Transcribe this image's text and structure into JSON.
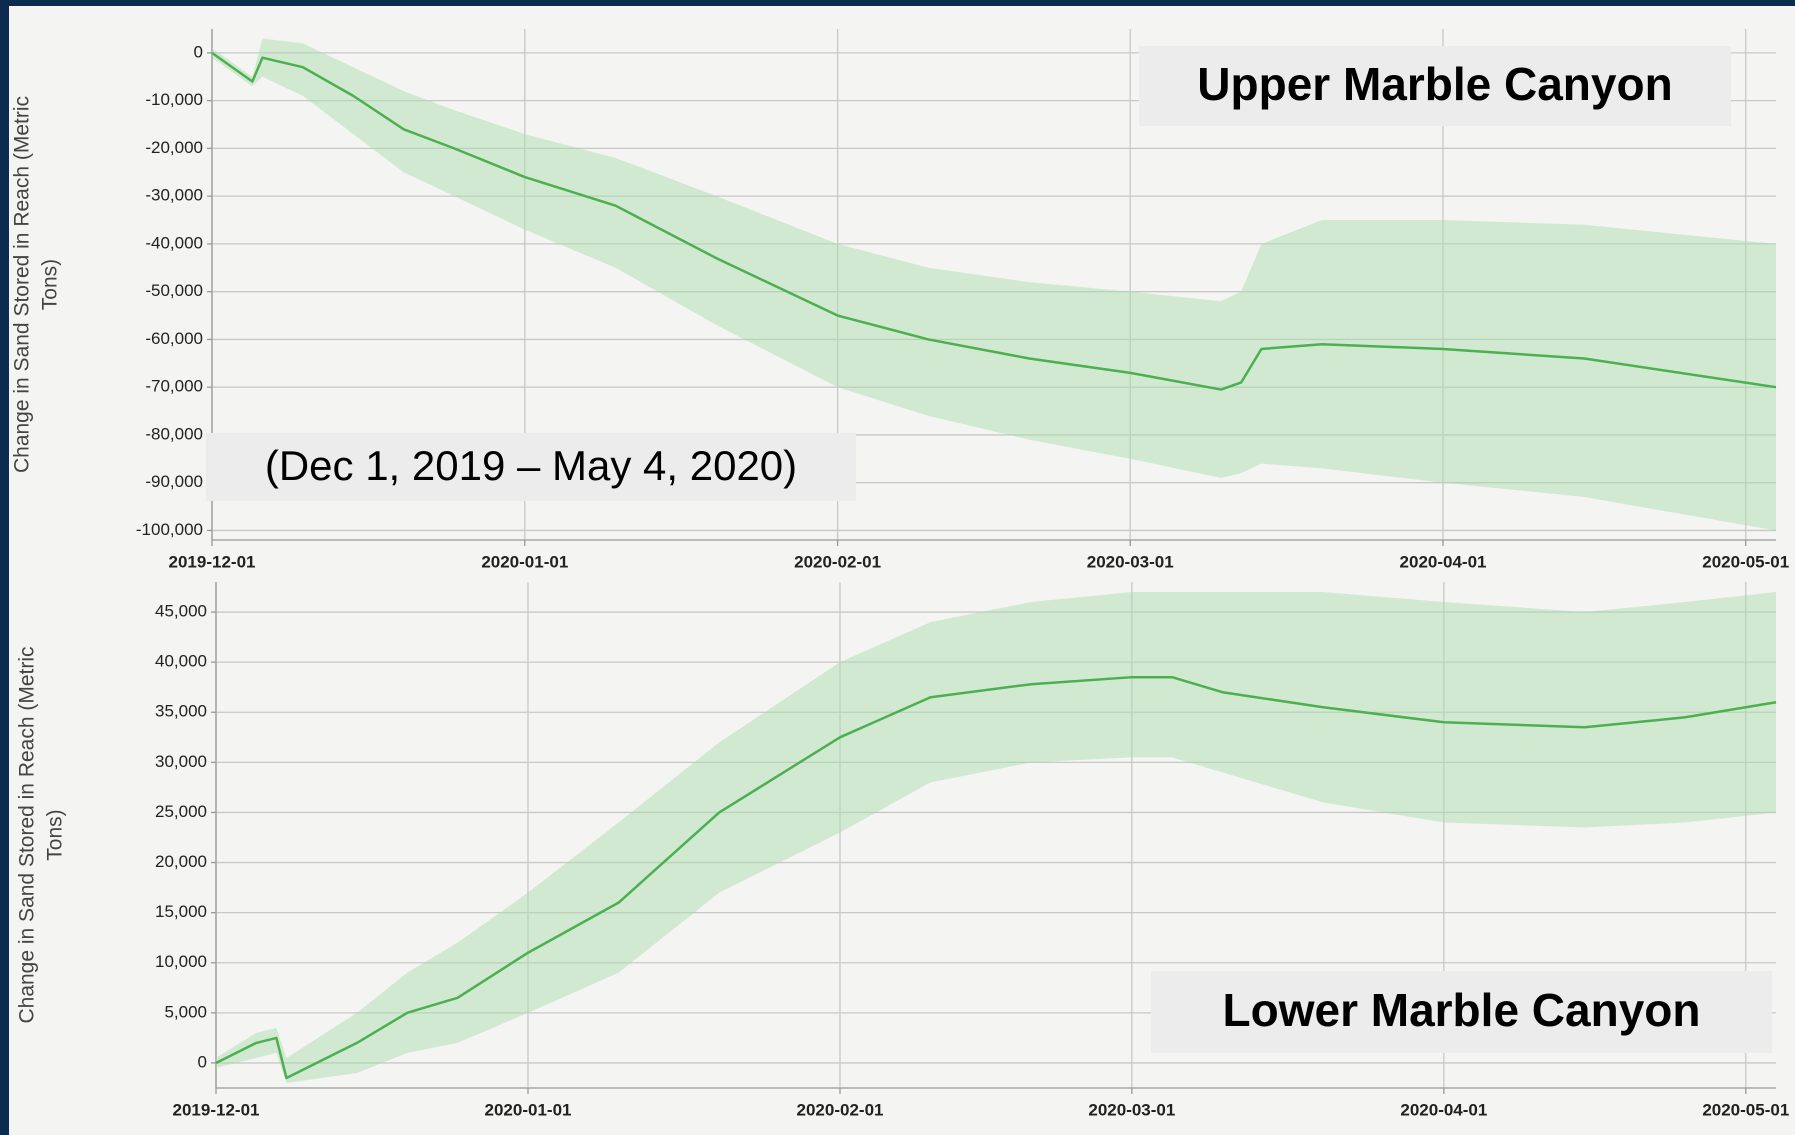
{
  "chart_data": [
    {
      "type": "line",
      "color": "#4caf50",
      "band_color": "#a8dca8",
      "ylabel": [
        "Change in Sand Stored in Reach (Metric",
        "Tons)"
      ],
      "annotations": [
        "Upper Marble Canyon",
        "(Dec 1, 2019 – May 4, 2020)"
      ],
      "xlim": [
        "2019-12-01",
        "2020-05-04"
      ],
      "xticks": [
        "2019-12-01",
        "2020-01-01",
        "2020-02-01",
        "2020-03-01",
        "2020-04-01",
        "2020-05-01"
      ],
      "ylim": [
        -102000,
        5000
      ],
      "yticks": [
        {
          "value": 0,
          "label": "0"
        },
        {
          "value": -10000,
          "label": "-10,000"
        },
        {
          "value": -20000,
          "label": "-20,000"
        },
        {
          "value": -30000,
          "label": "-30,000"
        },
        {
          "value": -40000,
          "label": "-40,000"
        },
        {
          "value": -50000,
          "label": "-50,000"
        },
        {
          "value": -60000,
          "label": "-60,000"
        },
        {
          "value": -70000,
          "label": "-70,000"
        },
        {
          "value": -80000,
          "label": "-80,000"
        },
        {
          "value": -90000,
          "label": "-90,000"
        },
        {
          "value": -100000,
          "label": "-100,000"
        }
      ],
      "grid": true,
      "x": [
        "2019-12-01",
        "2019-12-05",
        "2019-12-06",
        "2019-12-10",
        "2019-12-15",
        "2019-12-20",
        "2019-12-25",
        "2020-01-01",
        "2020-01-10",
        "2020-01-20",
        "2020-02-01",
        "2020-02-10",
        "2020-02-20",
        "2020-03-01",
        "2020-03-10",
        "2020-03-12",
        "2020-03-14",
        "2020-03-20",
        "2020-04-01",
        "2020-04-15",
        "2020-05-04"
      ],
      "values": [
        0,
        -6000,
        -1000,
        -3000,
        -9000,
        -16000,
        -20000,
        -26000,
        -32000,
        -43000,
        -55000,
        -60000,
        -64000,
        -67000,
        -70500,
        -69000,
        -62000,
        -61000,
        -62000,
        -64000,
        -70000
      ],
      "band_lower": [
        -1000,
        -7000,
        -5000,
        -9000,
        -17000,
        -25000,
        -30000,
        -37000,
        -45000,
        -57000,
        -70000,
        -76000,
        -81000,
        -85000,
        -89000,
        -88000,
        -86000,
        -87000,
        -90000,
        -93000,
        -100000
      ],
      "band_upper": [
        1000,
        -5000,
        3000,
        2000,
        -3000,
        -8000,
        -12000,
        -17000,
        -22000,
        -30000,
        -40000,
        -45000,
        -48000,
        -50000,
        -52000,
        -50000,
        -40000,
        -35000,
        -35000,
        -36000,
        -40000
      ]
    },
    {
      "type": "line",
      "color": "#4caf50",
      "band_color": "#a8dca8",
      "ylabel": [
        "Change in Sand Stored in Reach (Metric",
        "Tons)"
      ],
      "annotations": [
        "Lower Marble Canyon"
      ],
      "xlim": [
        "2019-12-01",
        "2020-05-04"
      ],
      "xticks": [
        "2019-12-01",
        "2020-01-01",
        "2020-02-01",
        "2020-03-01",
        "2020-04-01",
        "2020-05-01"
      ],
      "ylim": [
        -2500,
        48000
      ],
      "yticks": [
        {
          "value": 0,
          "label": "0"
        },
        {
          "value": 5000,
          "label": "5,000"
        },
        {
          "value": 10000,
          "label": "10,000"
        },
        {
          "value": 15000,
          "label": "15,000"
        },
        {
          "value": 20000,
          "label": "20,000"
        },
        {
          "value": 25000,
          "label": "25,000"
        },
        {
          "value": 30000,
          "label": "30,000"
        },
        {
          "value": 35000,
          "label": "35,000"
        },
        {
          "value": 40000,
          "label": "40,000"
        },
        {
          "value": 45000,
          "label": "45,000"
        }
      ],
      "grid": true,
      "x": [
        "2019-12-01",
        "2019-12-05",
        "2019-12-07",
        "2019-12-08",
        "2019-12-15",
        "2019-12-20",
        "2019-12-25",
        "2020-01-01",
        "2020-01-10",
        "2020-01-20",
        "2020-02-01",
        "2020-02-10",
        "2020-02-20",
        "2020-03-01",
        "2020-03-05",
        "2020-03-10",
        "2020-03-20",
        "2020-04-01",
        "2020-04-15",
        "2020-04-25",
        "2020-05-04"
      ],
      "values": [
        0,
        2000,
        2500,
        -1500,
        2000,
        5000,
        6500,
        11000,
        16000,
        25000,
        32500,
        36500,
        37800,
        38500,
        38500,
        37000,
        35500,
        34000,
        33500,
        34500,
        36000
      ],
      "band_lower": [
        -500,
        500,
        1000,
        -2000,
        -1000,
        1000,
        2000,
        5000,
        9000,
        17000,
        23000,
        28000,
        30000,
        30500,
        30500,
        29000,
        26000,
        24000,
        23500,
        24000,
        25000
      ],
      "band_upper": [
        500,
        3000,
        3500,
        500,
        5000,
        9000,
        12000,
        17000,
        24000,
        32000,
        40000,
        44000,
        46000,
        47000,
        47000,
        47000,
        47000,
        46000,
        45000,
        46000,
        47000
      ]
    }
  ]
}
